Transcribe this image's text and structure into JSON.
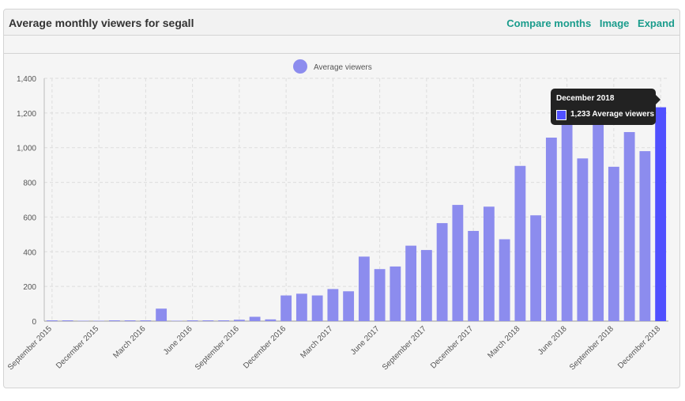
{
  "panel": {
    "title": "Average monthly viewers for segall",
    "actions": [
      "Compare months",
      "Image",
      "Expand"
    ]
  },
  "tooltip": {
    "title": "December 2018",
    "value_text": "1,233 Average viewers"
  },
  "colors": {
    "bar": "#8c8cee",
    "bar_highlight": "#5050ff",
    "link": "#1a9c8c"
  },
  "chart_data": {
    "type": "bar",
    "legend": "Average viewers",
    "legend_position": "top-center",
    "grid": true,
    "ylim": [
      0,
      1400
    ],
    "y_ticks": [
      "0",
      "200",
      "400",
      "600",
      "800",
      "1,000",
      "1,200",
      "1,400"
    ],
    "y_tick_values": [
      0,
      200,
      400,
      600,
      800,
      1000,
      1200,
      1400
    ],
    "x_tick_labels": [
      "September 2015",
      "December 2015",
      "March 2016",
      "June 2016",
      "September 2016",
      "December 2016",
      "March 2017",
      "June 2017",
      "September 2017",
      "December 2017",
      "March 2018",
      "June 2018",
      "September 2018",
      "December 2018"
    ],
    "categories": [
      "September 2015",
      "October 2015",
      "November 2015",
      "December 2015",
      "January 2016",
      "February 2016",
      "March 2016",
      "April 2016",
      "May 2016",
      "June 2016",
      "July 2016",
      "August 2016",
      "September 2016",
      "October 2016",
      "November 2016",
      "December 2016",
      "January 2017",
      "February 2017",
      "March 2017",
      "April 2017",
      "May 2017",
      "June 2017",
      "July 2017",
      "August 2017",
      "September 2017",
      "October 2017",
      "November 2017",
      "December 2017",
      "January 2018",
      "February 2018",
      "March 2018",
      "April 2018",
      "May 2018",
      "June 2018",
      "July 2018",
      "August 2018",
      "September 2018",
      "October 2018",
      "November 2018",
      "December 2018"
    ],
    "series": [
      {
        "name": "Average viewers",
        "values": [
          1,
          1,
          0,
          0,
          2,
          4,
          2,
          72,
          0,
          2,
          4,
          3,
          8,
          25,
          10,
          148,
          158,
          148,
          185,
          172,
          372,
          300,
          315,
          435,
          410,
          565,
          670,
          520,
          660,
          472,
          895,
          610,
          1058,
          1210,
          938,
          1190,
          890,
          1090,
          980,
          1233
        ]
      }
    ],
    "highlight": "December 2018"
  }
}
